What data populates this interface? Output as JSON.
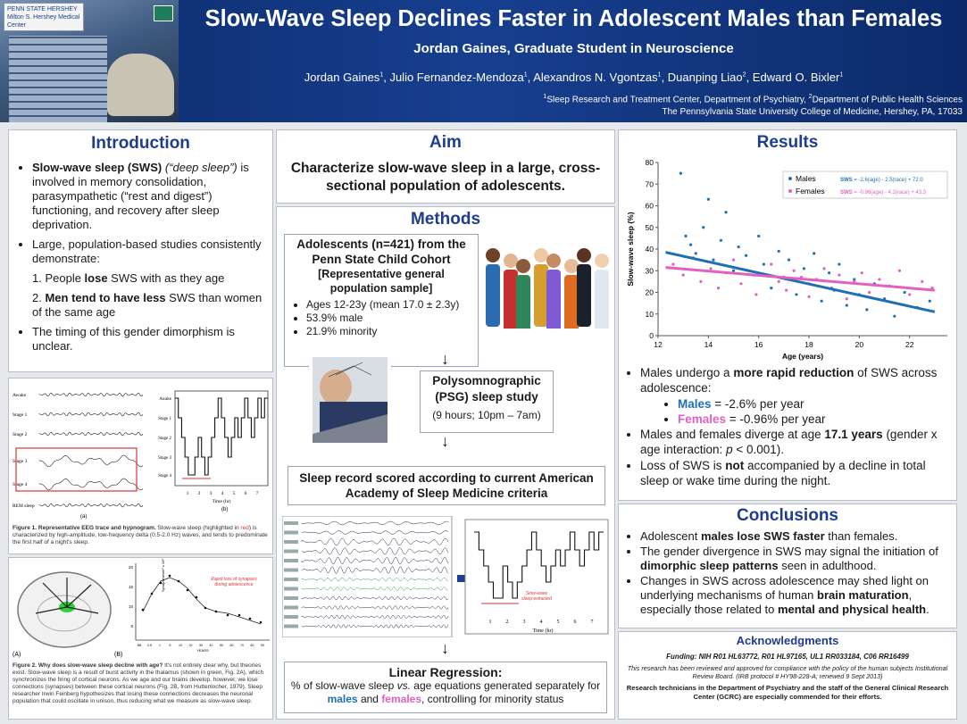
{
  "header": {
    "title": "Slow-Wave Sleep Declines Faster in Adolescent Males than Females",
    "subtitle": "Jordan Gaines, Graduate Student in Neuroscience",
    "authors": [
      {
        "name": "Jordan Gaines",
        "sup": "1"
      },
      {
        "name": "Julio Fernandez-Mendoza",
        "sup": "1"
      },
      {
        "name": "Alexandros N. Vgontzas",
        "sup": "1"
      },
      {
        "name": "Duanping Liao",
        "sup": "2"
      },
      {
        "name": "Edward O. Bixler",
        "sup": "1"
      }
    ],
    "affiliation_1": "Sleep Research and Treatment Center, Department of Psychiatry, ",
    "affiliation_2": "Department of Public Health Sciences",
    "affiliation_line2": "The Pennsylvania State University College of Medicine, Hershey, PA, 17033",
    "logo_text": "PENN STATE HERSHEY Milton S. Hershey Medical Center"
  },
  "introduction": {
    "heading": "Introduction",
    "b1_bold": "Slow-wave sleep (SWS)",
    "b1_italic": "(“deep sleep”)",
    "b1_rest": "is involved in memory consolidation, parasympathetic (“rest and digest”) functioning, and recovery after sleep deprivation.",
    "b2": "Large, population-based studies consistently demonstrate:",
    "n1_pre": "1. People ",
    "n1_bold": "lose",
    "n1_post": " SWS with as they age",
    "n2_pre": "2. ",
    "n2_bold": "Men tend to have less",
    "n2_post": " SWS than women of the same age",
    "b3": "The timing of this gender dimorphism is unclear."
  },
  "figure1": {
    "stages": [
      "Awake",
      "Stage 1",
      "Stage 2",
      "Stage 3",
      "Stage 4",
      "REM sleep"
    ],
    "hyp_stages": [
      "Awake",
      "Stage 1",
      "Stage 2",
      "Stage 3",
      "Stage 4"
    ],
    "hours": [
      "1",
      "2",
      "3",
      "4",
      "5",
      "6",
      "7"
    ],
    "xlabel": "Time (hr)",
    "label_a": "(a)",
    "label_b": "(b)",
    "caption_bold": "Figure 1. Representative EEG trace and hypnogram.",
    "caption_1": " Slow-wave sleep (highlighted in ",
    "caption_red": "red",
    "caption_2": ") is characterized by high-amplitude, low-frequency delta (0.5-2.0 Hz) waves, and tends to predominate the first half of a night's sleep."
  },
  "figure2": {
    "label_a": "(A)",
    "label_b": "(B)",
    "annotation": "Rapid loss of synapses during adolescence",
    "ylabel": "Synapses/mm³ x 10⁸",
    "xlabel": "YEARS",
    "yticks": [
      "20",
      "15",
      "10",
      "5"
    ],
    "xticks": [
      "NB",
      "0.5",
      "1",
      "5",
      "10",
      "20",
      "30",
      "40",
      "50",
      "60",
      "70",
      "80",
      "90"
    ],
    "caption_bold": "Figure 2. Why does slow-wave sleep decline with age?",
    "caption": " It's not entirely clear why, but theories exist. Slow-wave sleep is a result of burst activity in the thalamus (shown in green, Fig. 2A), which synchronizes the firing of cortical neurons. As we age and our brains develop, however, we lose connections (synapses) between these cortical neurons (Fig. 2B, from Huttenlocher, 1979). Sleep researcher Irwin Feinberg hypothesizes that losing these connections decreases the neuronal population that could oscillate in unison, thus reducing what we measure as slow-wave sleep."
  },
  "aim": {
    "heading": "Aim",
    "text": "Characterize slow-wave sleep in a large, cross-sectional population of adolescents."
  },
  "methods": {
    "heading": "Methods",
    "cohort_title": "Adolescents (n=421) from the Penn State Child Cohort",
    "cohort_sub": "[Representative general population sample]",
    "cohort_items": [
      "Ages 12-23y (mean 17.0 ± 2.3y)",
      "53.9% male",
      "21.9% minority"
    ],
    "psg_title": "Polysomnographic (PSG) sleep study",
    "psg_detail": "(9 hours; 10pm – 7am)",
    "scored": "Sleep record scored according to current American Academy of Sleep Medicine criteria",
    "swsextracted": "Slow-wave sleep extracted",
    "hours": [
      "1",
      "2",
      "3",
      "4",
      "5",
      "6",
      "7"
    ],
    "xlabel": "Time (hr)",
    "regression_title": "Linear Regression:",
    "reg_1": "% of slow-wave sleep ",
    "reg_vs": "vs.",
    "reg_2": " age equations generated separately for ",
    "reg_males": "males",
    "reg_and": " and ",
    "reg_females": "females",
    "reg_3": ", controlling for minority status"
  },
  "results": {
    "heading": "Results",
    "b1_pre": "Males undergo a ",
    "b1_bold": "more rapid reduction",
    "b1_post": " of SWS across adolescence:",
    "males_label": "Males",
    "males_rate": " = -2.6% per year",
    "females_label": "Females",
    "females_rate": " = -0.96% per year",
    "b2_pre": "Males and females diverge at age ",
    "b2_bold": "17.1 years",
    "b2_post": " (gender x age interaction: ",
    "b2_p": "p",
    "b2_end": " < 0.001).",
    "b3_pre": "Loss of SWS is ",
    "b3_bold": "not",
    "b3_post": " accompanied by a decline in total sleep or wake time during the night."
  },
  "chart_data": {
    "type": "scatter",
    "xlabel": "Age (years)",
    "ylabel": "Slow-wave sleep (%)",
    "xlim": [
      12,
      23.5
    ],
    "ylim": [
      0,
      80
    ],
    "xticks": [
      12,
      14,
      16,
      18,
      20,
      22
    ],
    "yticks": [
      0,
      10,
      20,
      30,
      40,
      50,
      60,
      70,
      80
    ],
    "legend_position": "top-right",
    "series": [
      {
        "name": "Males",
        "color": "#1f6fb5",
        "equation_sws": "SWS",
        "equation": " = -2.6(age) - 2.5(race) + 72.0",
        "fit": [
          [
            12.3,
            38.5
          ],
          [
            23,
            11.0
          ]
        ],
        "points": [
          [
            12.9,
            75
          ],
          [
            13.1,
            46
          ],
          [
            13.3,
            42
          ],
          [
            13.5,
            38
          ],
          [
            13.8,
            50
          ],
          [
            14.0,
            63
          ],
          [
            14.2,
            35
          ],
          [
            14.5,
            44
          ],
          [
            14.7,
            57
          ],
          [
            15.0,
            30
          ],
          [
            15.2,
            41
          ],
          [
            15.5,
            37
          ],
          [
            15.8,
            28
          ],
          [
            16.0,
            46
          ],
          [
            16.2,
            33
          ],
          [
            16.5,
            22
          ],
          [
            16.8,
            39
          ],
          [
            17.0,
            27
          ],
          [
            17.2,
            35
          ],
          [
            17.5,
            19
          ],
          [
            17.8,
            31
          ],
          [
            18.0,
            24
          ],
          [
            18.2,
            38
          ],
          [
            18.5,
            16
          ],
          [
            18.8,
            29
          ],
          [
            19.0,
            21
          ],
          [
            19.2,
            33
          ],
          [
            19.5,
            14
          ],
          [
            19.8,
            26
          ],
          [
            20.0,
            19
          ],
          [
            20.3,
            12
          ],
          [
            20.6,
            24
          ],
          [
            21.0,
            17
          ],
          [
            21.4,
            9
          ],
          [
            21.8,
            20
          ],
          [
            22.3,
            13
          ],
          [
            22.8,
            16
          ]
        ]
      },
      {
        "name": "Females",
        "color": "#e35fc0",
        "equation_sws": "SWS",
        "equation": " = -0.96(age) - 4.2(race) + 43.3",
        "fit": [
          [
            12.3,
            31.5
          ],
          [
            23,
            21.0
          ]
        ],
        "points": [
          [
            12.6,
            33
          ],
          [
            13.0,
            28
          ],
          [
            13.4,
            36
          ],
          [
            13.7,
            25
          ],
          [
            14.1,
            31
          ],
          [
            14.4,
            22
          ],
          [
            14.7,
            29
          ],
          [
            15.0,
            35
          ],
          [
            15.3,
            24
          ],
          [
            15.6,
            30
          ],
          [
            15.9,
            19
          ],
          [
            16.2,
            28
          ],
          [
            16.5,
            33
          ],
          [
            16.8,
            25
          ],
          [
            17.1,
            21
          ],
          [
            17.4,
            30
          ],
          [
            17.7,
            27
          ],
          [
            18.0,
            18
          ],
          [
            18.3,
            26
          ],
          [
            18.6,
            31
          ],
          [
            18.9,
            22
          ],
          [
            19.2,
            28
          ],
          [
            19.5,
            17
          ],
          [
            19.8,
            25
          ],
          [
            20.1,
            29
          ],
          [
            20.4,
            20
          ],
          [
            20.8,
            26
          ],
          [
            21.2,
            23
          ],
          [
            21.6,
            30
          ],
          [
            22.0,
            19
          ],
          [
            22.5,
            25
          ],
          [
            22.9,
            22
          ]
        ]
      }
    ]
  },
  "conclusions": {
    "heading": "Conclusions",
    "b1_pre": "Adolescent ",
    "b1_bold": "males lose SWS faster",
    "b1_post": " than females.",
    "b2_pre": "The gender divergence in SWS may signal the initiation of ",
    "b2_bold": "dimorphic sleep patterns",
    "b2_post": " seen in adulthood.",
    "b3_pre": "Changes in SWS across adolescence may shed light on underlying mechanisms of human ",
    "b3_bold": "brain maturation",
    "b3_mid": ", especially those related to ",
    "b3_bold2": "mental and physical health",
    "b3_end": "."
  },
  "acknowledgments": {
    "heading": "Acknowledgments",
    "funding": "Funding: NIH R01 HL63772, R01 HL97165, UL1 RR033184, C06 RR16499",
    "irb": "This research has been reviewed and approved for compliance with the policy of the human subjects Institutional Review Board. (IRB protocol # HY98-228-A; renewed 9 Sept 2013)",
    "thanks": "Research technicians in the Department of Psychiatry and the staff of the General Clinical Research Center (GCRC) are especially commended for their efforts."
  },
  "colors": {
    "header_bg": "#173f8f",
    "heading": "#1f3c8f",
    "males": "#1f6fb5",
    "females": "#e35fc0"
  }
}
